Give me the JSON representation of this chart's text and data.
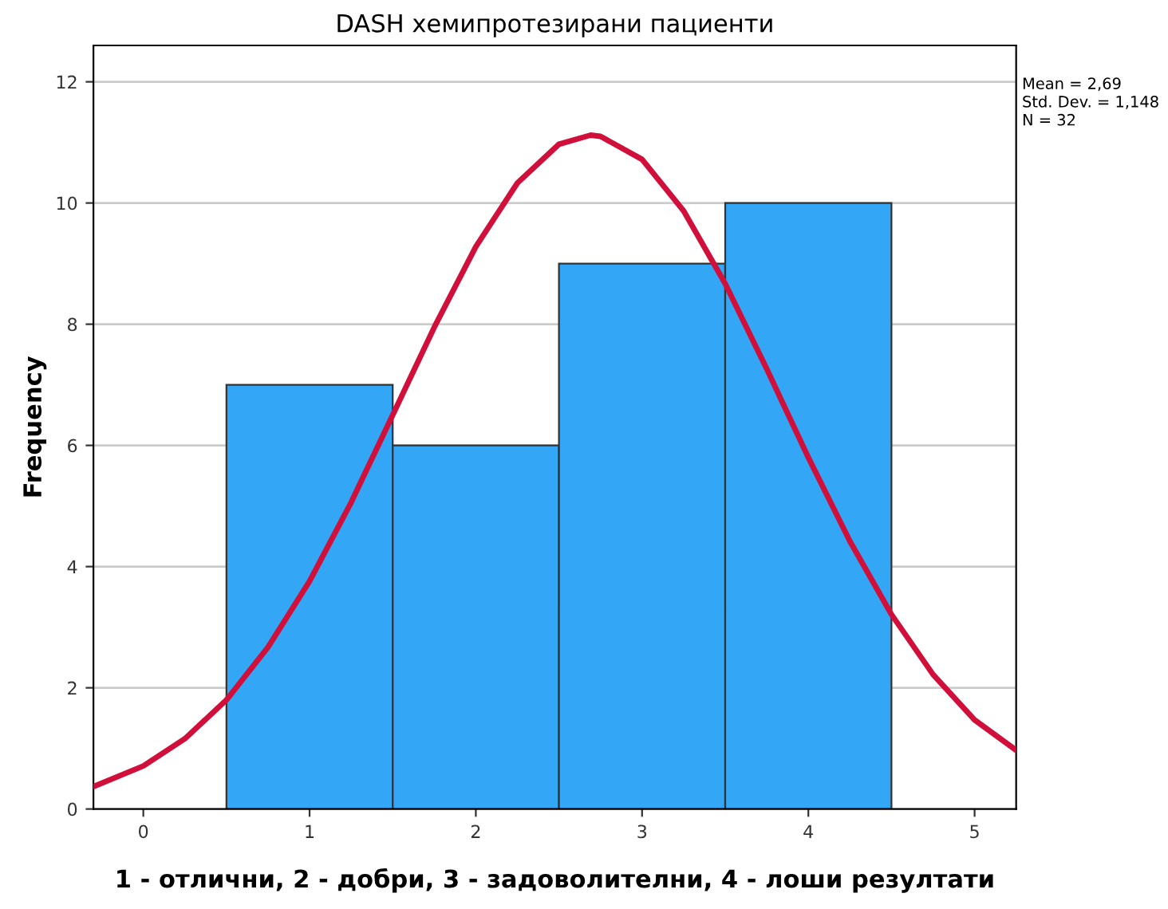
{
  "chart_data": {
    "type": "histogram",
    "title": "DASH хемипротезирани пациенти",
    "xlabel": "1 - отлични, 2 - добри, 3 - задоволителни, 4 - лоши резултати",
    "ylabel": "Frequency",
    "bins": [
      0.5,
      1.5,
      2.5,
      3.5,
      4.5
    ],
    "values": [
      7,
      6,
      9,
      10
    ],
    "color": "#33a7f5",
    "series": [
      {
        "type": "line",
        "color": "#d0103a",
        "x": [
          -0.3,
          0,
          0.25,
          0.5,
          0.75,
          1,
          1.25,
          1.5,
          1.75,
          2,
          2.25,
          2.5,
          2.69,
          2.75,
          3,
          3.25,
          3.5,
          3.75,
          4,
          4.25,
          4.5,
          4.75,
          5,
          5.25
        ],
        "values": [
          0.37,
          0.71,
          1.16,
          1.8,
          2.67,
          3.76,
          5.06,
          6.5,
          7.95,
          9.28,
          10.33,
          10.97,
          11.12,
          11.1,
          10.72,
          9.87,
          8.67,
          7.26,
          5.8,
          4.42,
          3.21,
          2.22,
          1.47,
          0.97
        ]
      }
    ],
    "xlim": [
      -0.3,
      5.25
    ],
    "xticks": [
      0,
      1,
      2,
      3,
      4,
      5
    ],
    "ylim": [
      0,
      12.6
    ],
    "yticks": [
      0,
      2,
      4,
      6,
      8,
      10,
      12
    ],
    "grid": "y",
    "marker": "none",
    "line_style": "solid",
    "annotations": [
      "Mean = 2,69",
      "Std. Dev. = 1,148",
      "N = 32"
    ]
  }
}
